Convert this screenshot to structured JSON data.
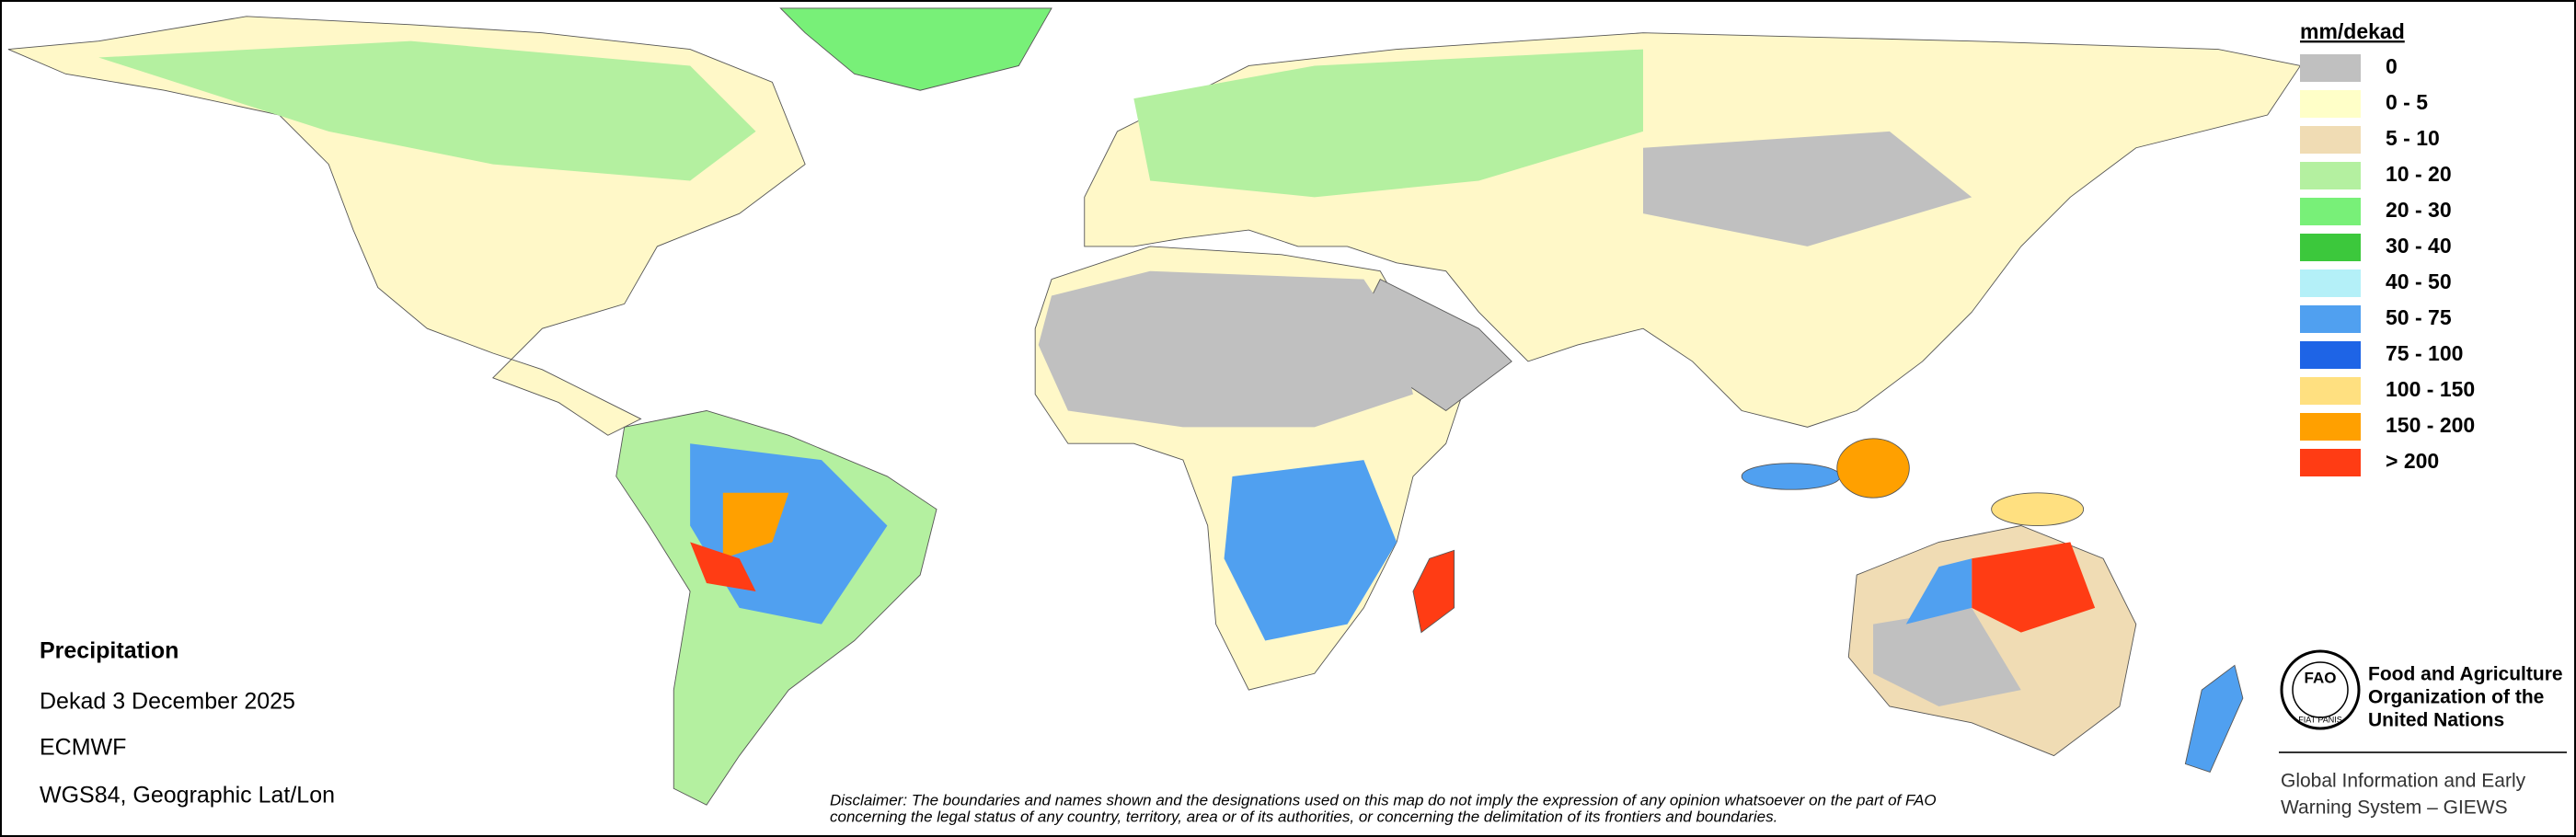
{
  "legend": {
    "title": "mm/dekad",
    "items": [
      {
        "label": "0",
        "color": "#c0c0c0"
      },
      {
        "label": "0 - 5",
        "color": "#ffffc8"
      },
      {
        "label": "5 - 10",
        "color": "#f0dcb4"
      },
      {
        "label": "10 - 20",
        "color": "#b4f0a0"
      },
      {
        "label": "20 - 30",
        "color": "#78f078"
      },
      {
        "label": "30 - 40",
        "color": "#3cc83c"
      },
      {
        "label": "40 - 50",
        "color": "#b4f0f8"
      },
      {
        "label": "50 - 75",
        "color": "#50a0f0"
      },
      {
        "label": "75 - 100",
        "color": "#1e64e6"
      },
      {
        "label": "100 - 150",
        "color": "#ffe080"
      },
      {
        "label": "150 - 200",
        "color": "#ffa000"
      },
      {
        "label": "> 200",
        "color": "#ff3c14"
      }
    ]
  },
  "info": {
    "title": "Precipitation",
    "period": "Dekad 3 December 2025",
    "source": "ECMWF",
    "projection": "WGS84, Geographic Lat/Lon"
  },
  "disclaimer": [
    "Disclaimer: The boundaries and names shown and the designations used on this map do not imply the expression of any opinion whatsoever on the part of FAO",
    "concerning the legal status of any country, territory, area or of its authorities, or concerning the delimitation of its frontiers and boundaries."
  ],
  "organization": {
    "logo": {
      "letters": "FAO",
      "motto": "FIAT PANIS"
    },
    "name": [
      "Food and Agriculture",
      "Organization of the",
      "United Nations"
    ],
    "system": [
      "Global Information and Early",
      "Warning System – GIEWS"
    ]
  }
}
